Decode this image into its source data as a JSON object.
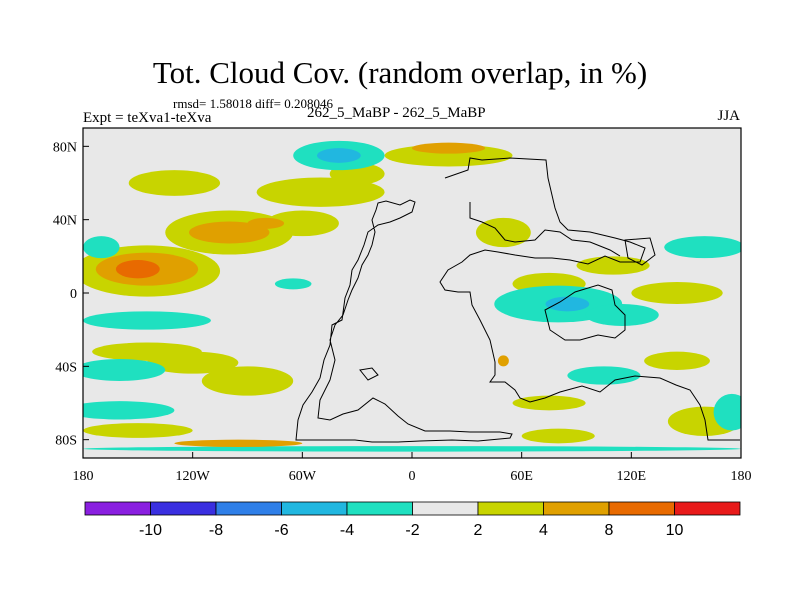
{
  "title": "Tot. Cloud Cov. (random overlap, in %)",
  "stats": "rmsd= 1.58018 diff= 0.208046",
  "experiment": "Expt = teXva1-teXva",
  "subtitle": "262_5_MaBP - 262_5_MaBP",
  "season": "JJA",
  "map": {
    "lon_range": [
      -180,
      180
    ],
    "lat_range": [
      -90,
      90
    ],
    "background_color": "#e8e8e8"
  },
  "x_ticks": [
    {
      "value": -180,
      "label": "180"
    },
    {
      "value": -120,
      "label": "120W"
    },
    {
      "value": -60,
      "label": "60W"
    },
    {
      "value": 0,
      "label": "0"
    },
    {
      "value": 60,
      "label": "60E"
    },
    {
      "value": 120,
      "label": "120E"
    },
    {
      "value": 180,
      "label": "180"
    }
  ],
  "y_ticks": [
    {
      "value": 80,
      "label": "80N"
    },
    {
      "value": 40,
      "label": "40N"
    },
    {
      "value": 0,
      "label": "0"
    },
    {
      "value": -40,
      "label": "40S"
    },
    {
      "value": -80,
      "label": "80S"
    }
  ],
  "colorbar": {
    "colors": [
      "#8a1fe0",
      "#3a2fe0",
      "#2f7fe8",
      "#21b7e0",
      "#1fe0c0",
      "#e8e8e8",
      "#c8d400",
      "#e0a000",
      "#e86a00",
      "#e81a1a"
    ],
    "labels": [
      "-10",
      "-8",
      "-6",
      "-4",
      "-2",
      "2",
      "4",
      "8",
      "10"
    ]
  },
  "chart_data": {
    "type": "filled-contour map",
    "title": "Tot. Cloud Cov. (random overlap, in %)",
    "levels": [
      -10,
      -8,
      -6,
      -4,
      -2,
      2,
      4,
      8,
      10
    ],
    "regions": [
      {
        "level": "4 to 8",
        "lon": -145,
        "lat": 13,
        "rx": 28,
        "ry": 9
      },
      {
        "level": "8 to 10",
        "lon": -150,
        "lat": 13,
        "rx": 12,
        "ry": 5
      },
      {
        "level": "8 to 10",
        "lon": -153,
        "lat": 13,
        "rx": 2,
        "ry": 2
      },
      {
        "level": "4 to 8",
        "lon": -100,
        "lat": 33,
        "rx": 22,
        "ry": 6
      },
      {
        "level": "4 to 8",
        "lon": -80,
        "lat": 38,
        "rx": 10,
        "ry": 3
      },
      {
        "level": "4 to 8",
        "lon": -95,
        "lat": -82,
        "rx": 35,
        "ry": 2
      },
      {
        "level": "4 to 8",
        "lon": 20,
        "lat": 79,
        "rx": 20,
        "ry": 3
      },
      {
        "level": "4 to 8",
        "lon": 50,
        "lat": -37,
        "rx": 3,
        "ry": 3
      },
      {
        "level": "2 to 4",
        "lon": -145,
        "lat": 12,
        "rx": 40,
        "ry": 14
      },
      {
        "level": "2 to 4",
        "lon": -100,
        "lat": 33,
        "rx": 35,
        "ry": 12
      },
      {
        "level": "2 to 4",
        "lon": -60,
        "lat": 38,
        "rx": 20,
        "ry": 7
      },
      {
        "level": "2 to 4",
        "lon": -50,
        "lat": 55,
        "rx": 35,
        "ry": 8
      },
      {
        "level": "2 to 4",
        "lon": -130,
        "lat": 60,
        "rx": 25,
        "ry": 7
      },
      {
        "level": "2 to 4",
        "lon": -145,
        "lat": -32,
        "rx": 30,
        "ry": 5
      },
      {
        "level": "2 to 4",
        "lon": -120,
        "lat": -38,
        "rx": 25,
        "ry": 6
      },
      {
        "level": "2 to 4",
        "lon": -90,
        "lat": -48,
        "rx": 25,
        "ry": 8
      },
      {
        "level": "2 to 4",
        "lon": -150,
        "lat": -75,
        "rx": 30,
        "ry": 4
      },
      {
        "level": "2 to 4",
        "lon": -30,
        "lat": 65,
        "rx": 15,
        "ry": 6
      },
      {
        "level": "2 to 4",
        "lon": 20,
        "lat": 75,
        "rx": 35,
        "ry": 6
      },
      {
        "level": "2 to 4",
        "lon": 50,
        "lat": 33,
        "rx": 15,
        "ry": 8
      },
      {
        "level": "2 to 4",
        "lon": 75,
        "lat": 5,
        "rx": 20,
        "ry": 6
      },
      {
        "level": "2 to 4",
        "lon": 110,
        "lat": 15,
        "rx": 20,
        "ry": 5
      },
      {
        "level": "2 to 4",
        "lon": 145,
        "lat": 0,
        "rx": 25,
        "ry": 6
      },
      {
        "level": "2 to 4",
        "lon": 145,
        "lat": -37,
        "rx": 18,
        "ry": 5
      },
      {
        "level": "2 to 4",
        "lon": 75,
        "lat": -60,
        "rx": 20,
        "ry": 4
      },
      {
        "level": "2 to 4",
        "lon": 80,
        "lat": -78,
        "rx": 20,
        "ry": 4
      },
      {
        "level": "2 to 4",
        "lon": 160,
        "lat": -70,
        "rx": 20,
        "ry": 8
      },
      {
        "level": "-2 to -4",
        "lon": -170,
        "lat": 25,
        "rx": 10,
        "ry": 6
      },
      {
        "level": "-2 to -4",
        "lon": 160,
        "lat": 25,
        "rx": 22,
        "ry": 6
      },
      {
        "level": "-2 to -4",
        "lon": -145,
        "lat": -15,
        "rx": 35,
        "ry": 5
      },
      {
        "level": "-2 to -4",
        "lon": -160,
        "lat": -42,
        "rx": 25,
        "ry": 6
      },
      {
        "level": "-2 to -4",
        "lon": -160,
        "lat": -64,
        "rx": 30,
        "ry": 5
      },
      {
        "level": "-2 to -4",
        "lon": -40,
        "lat": 75,
        "rx": 25,
        "ry": 8
      },
      {
        "level": "-2 to -4",
        "lon": -65,
        "lat": 5,
        "rx": 10,
        "ry": 3
      },
      {
        "level": "-2 to -4",
        "lon": 80,
        "lat": -6,
        "rx": 35,
        "ry": 10
      },
      {
        "level": "-2 to -4",
        "lon": 115,
        "lat": -12,
        "rx": 20,
        "ry": 6
      },
      {
        "level": "-2 to -4",
        "lon": 105,
        "lat": -45,
        "rx": 20,
        "ry": 5
      },
      {
        "level": "-2 to -4",
        "lon": 175,
        "lat": -65,
        "rx": 10,
        "ry": 10
      },
      {
        "level": "-2 to -4",
        "lon": 0,
        "lat": -85,
        "rx": 180,
        "ry": 1.5
      },
      {
        "level": "-4 to -6",
        "lon": -40,
        "lat": 75,
        "rx": 12,
        "ry": 4
      },
      {
        "level": "-4 to -6",
        "lon": 85,
        "lat": -6,
        "rx": 12,
        "ry": 4
      }
    ]
  }
}
